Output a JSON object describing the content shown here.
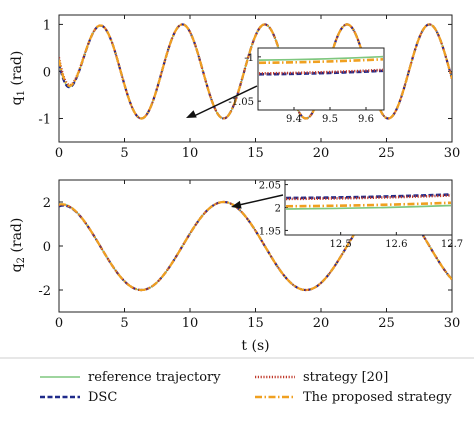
{
  "chart_data": [
    {
      "type": "line",
      "ylabel": "q",
      "ylabel_sub": "1",
      "ylabel_unit": " (rad)",
      "xlim": [
        0,
        30
      ],
      "ylim": [
        -1.5,
        1.2
      ],
      "xticks": [
        "0",
        "5",
        "10",
        "15",
        "20",
        "25",
        "30"
      ],
      "yticks": [
        "1",
        "0",
        "-1"
      ],
      "series": [
        {
          "key": "reference",
          "color": "#7fc77f",
          "values": [
            [
              0,
              0.2
            ],
            [
              3.1,
              1.0
            ],
            [
              9.4,
              -1.0
            ],
            [
              15.7,
              1.0
            ],
            [
              22.0,
              -1.0
            ],
            [
              28.3,
              1.0
            ],
            [
              30,
              0.85
            ]
          ]
        },
        {
          "key": "dsc",
          "color": "#1f2a8a",
          "values": [
            [
              0,
              0.18
            ],
            [
              3.1,
              1.0
            ],
            [
              9.4,
              -1.0
            ],
            [
              15.7,
              1.0
            ],
            [
              22.0,
              -1.0
            ],
            [
              28.3,
              1.0
            ],
            [
              30,
              0.85
            ]
          ]
        },
        {
          "key": "strategy20",
          "color": "#c0392b",
          "values": [
            [
              0,
              0.3
            ],
            [
              3.1,
              1.0
            ],
            [
              9.4,
              -1.0
            ],
            [
              15.7,
              1.0
            ],
            [
              22.0,
              -1.0
            ],
            [
              28.3,
              1.0
            ],
            [
              30,
              0.85
            ]
          ]
        },
        {
          "key": "proposed",
          "color": "#f0a020",
          "values": [
            [
              0,
              0.25
            ],
            [
              3.1,
              1.0
            ],
            [
              9.4,
              -1.0
            ],
            [
              15.7,
              1.0
            ],
            [
              22.0,
              -1.0
            ],
            [
              28.3,
              1.0
            ],
            [
              30,
              0.85
            ]
          ]
        }
      ],
      "inset": {
        "xlim": [
          9.3,
          9.65
        ],
        "ylim": [
          -1.06,
          -0.99
        ],
        "xticks": [
          "9.4",
          "9.5",
          "9.6"
        ],
        "yticks": [
          "-1",
          "-1.05"
        ],
        "levels": {
          "reference": -1.002,
          "proposed": -1.005,
          "strategy20": -1.017,
          "dsc": -1.018
        }
      }
    },
    {
      "type": "line",
      "ylabel": "q",
      "ylabel_sub": "2",
      "ylabel_unit": " (rad)",
      "xlabel": "t (s)",
      "xlim": [
        0,
        30
      ],
      "ylim": [
        -3,
        3
      ],
      "xticks": [
        "0",
        "5",
        "10",
        "15",
        "20",
        "25",
        "30"
      ],
      "yticks": [
        "2",
        "0",
        "-2"
      ],
      "series": [
        {
          "key": "reference",
          "color": "#7fc77f",
          "values": [
            [
              0,
              1.9
            ],
            [
              6.3,
              -2.0
            ],
            [
              12.6,
              2.0
            ],
            [
              18.9,
              -2.0
            ],
            [
              25.1,
              2.0
            ],
            [
              30,
              -1.6
            ]
          ]
        },
        {
          "key": "dsc",
          "color": "#1f2a8a",
          "values": [
            [
              0,
              1.8
            ],
            [
              6.3,
              -2.0
            ],
            [
              12.6,
              2.0
            ],
            [
              18.9,
              -2.0
            ],
            [
              25.1,
              2.0
            ],
            [
              30,
              -1.6
            ]
          ]
        },
        {
          "key": "strategy20",
          "color": "#c0392b",
          "values": [
            [
              0,
              1.85
            ],
            [
              6.3,
              -2.0
            ],
            [
              12.6,
              2.0
            ],
            [
              18.9,
              -2.0
            ],
            [
              25.1,
              2.0
            ],
            [
              30,
              -1.6
            ]
          ]
        },
        {
          "key": "proposed",
          "color": "#f0a020",
          "values": [
            [
              0,
              1.88
            ],
            [
              6.3,
              -2.0
            ],
            [
              12.6,
              2.0
            ],
            [
              18.9,
              -2.0
            ],
            [
              25.1,
              2.0
            ],
            [
              30,
              -1.6
            ]
          ]
        }
      ],
      "inset": {
        "xlim": [
          12.4,
          12.7
        ],
        "ylim": [
          1.94,
          2.06
        ],
        "xticks": [
          "12.5",
          "12.6",
          "12.7"
        ],
        "yticks": [
          "2.05",
          "2",
          "1.95"
        ],
        "levels": {
          "reference": 2.0,
          "proposed": 2.006,
          "strategy20": 2.022,
          "dsc": 2.024
        }
      }
    }
  ],
  "legend": [
    {
      "key": "reference",
      "label": "reference trajectory",
      "color": "#7fc77f",
      "style": "solid"
    },
    {
      "key": "strategy20",
      "label": "strategy [20]",
      "color": "#c0392b",
      "style": "dotted"
    },
    {
      "key": "dsc",
      "label": "DSC",
      "color": "#1f2a8a",
      "style": "dashed"
    },
    {
      "key": "proposed",
      "label": "The proposed strategy",
      "color": "#f0a020",
      "style": "dashdot"
    }
  ]
}
